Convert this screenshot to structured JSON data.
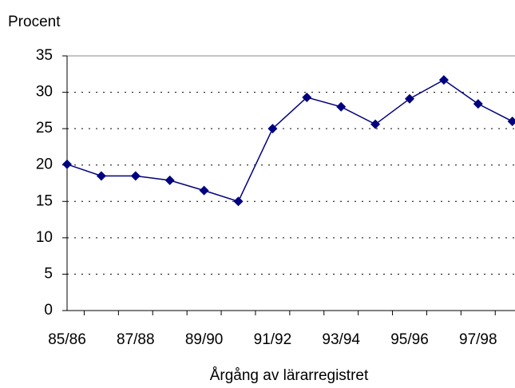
{
  "chart_data": {
    "type": "line",
    "y_label": "Procent",
    "x_label": "Årgång av lärarregistret",
    "categories": [
      "85/86",
      null,
      "87/88",
      null,
      "89/90",
      null,
      "91/92",
      null,
      "93/94",
      null,
      "95/96",
      null,
      "97/98",
      null
    ],
    "series": [
      {
        "name": "Procent",
        "color": "#000080",
        "values": [
          20.1,
          18.5,
          18.5,
          17.9,
          16.5,
          15.0,
          25.0,
          29.3,
          28.0,
          25.6,
          29.1,
          31.7,
          28.4,
          26.0
        ]
      }
    ],
    "ylim": [
      0,
      35
    ],
    "yticks": [
      0,
      5,
      10,
      15,
      20,
      25,
      30,
      35
    ],
    "grid": true
  }
}
